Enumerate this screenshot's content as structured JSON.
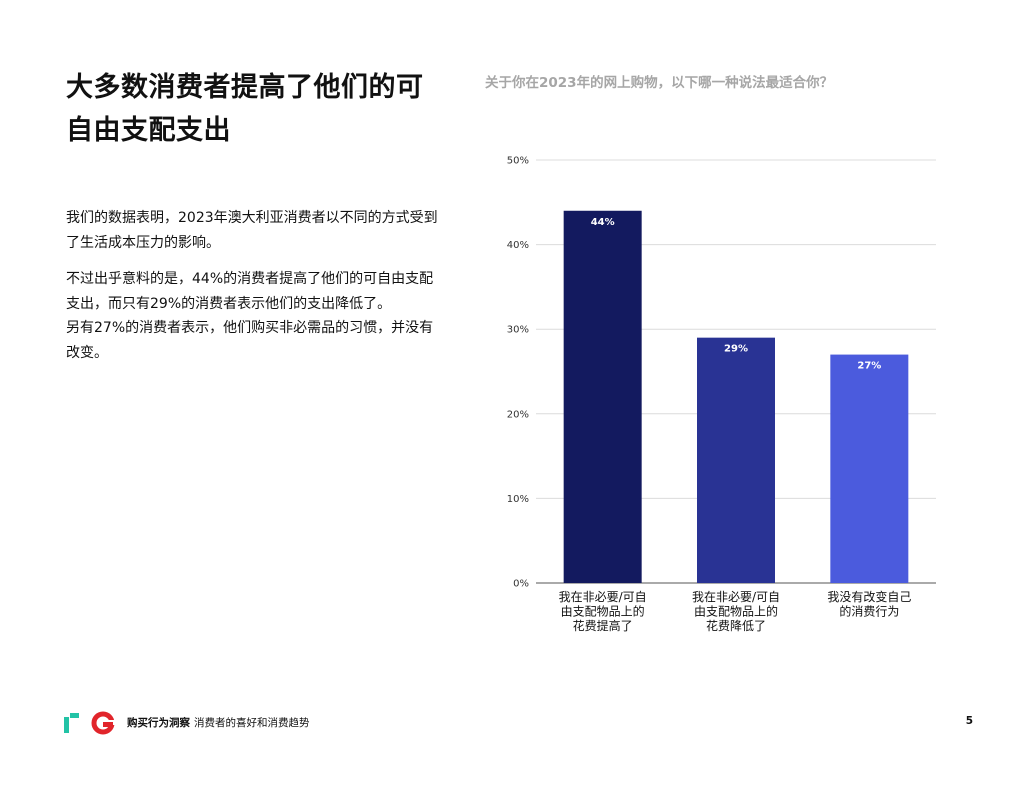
{
  "heading": "大多数消费者提高了他们的可自由支配支出",
  "paragraphs": [
    "我们的数据表明，2023年澳大利亚消费者以不同的方式受到了生活成本压力的影响。",
    "不过出乎意料的是，44%的消费者提高了他们的可自由支配支出，而只有29%的消费者表示他们的支出降低了。\n另有27%的消费者表示，他们购买非必需品的习惯，并没有改变。"
  ],
  "footer": {
    "brand": "购买行为洞察",
    "subtitle": "消费者的喜好和消费趋势",
    "page_number": "5"
  },
  "colors": {
    "logo_teal": "#22c3a6",
    "logo_red": "#e1252b"
  },
  "chart_data": {
    "type": "bar",
    "title": "关于你在2023年的网上购物，以下哪一种说法最适合你？",
    "categories": [
      "我在非必要/可自由支配物品上的花费提高了",
      "我在非必要/可自由支配物品上的花费降低了",
      "我没有改变自己的消费行为"
    ],
    "category_lines": [
      [
        "我在非必要/可自",
        "由支配物品上的",
        "花费提高了"
      ],
      [
        "我在非必要/可自",
        "由支配物品上的",
        "花费降低了"
      ],
      [
        "我没有改变自己",
        "的消费行为"
      ]
    ],
    "values": [
      44,
      29,
      27
    ],
    "value_labels": [
      "44%",
      "29%",
      "27%"
    ],
    "bar_colors": [
      "#131a5f",
      "#293394",
      "#4b5bdd"
    ],
    "ylim": [
      0,
      50
    ],
    "yticks": [
      0,
      10,
      20,
      30,
      40,
      50
    ],
    "ytick_labels": [
      "0%",
      "10%",
      "20%",
      "30%",
      "40%",
      "50%"
    ],
    "grid": true,
    "legend": "none"
  }
}
